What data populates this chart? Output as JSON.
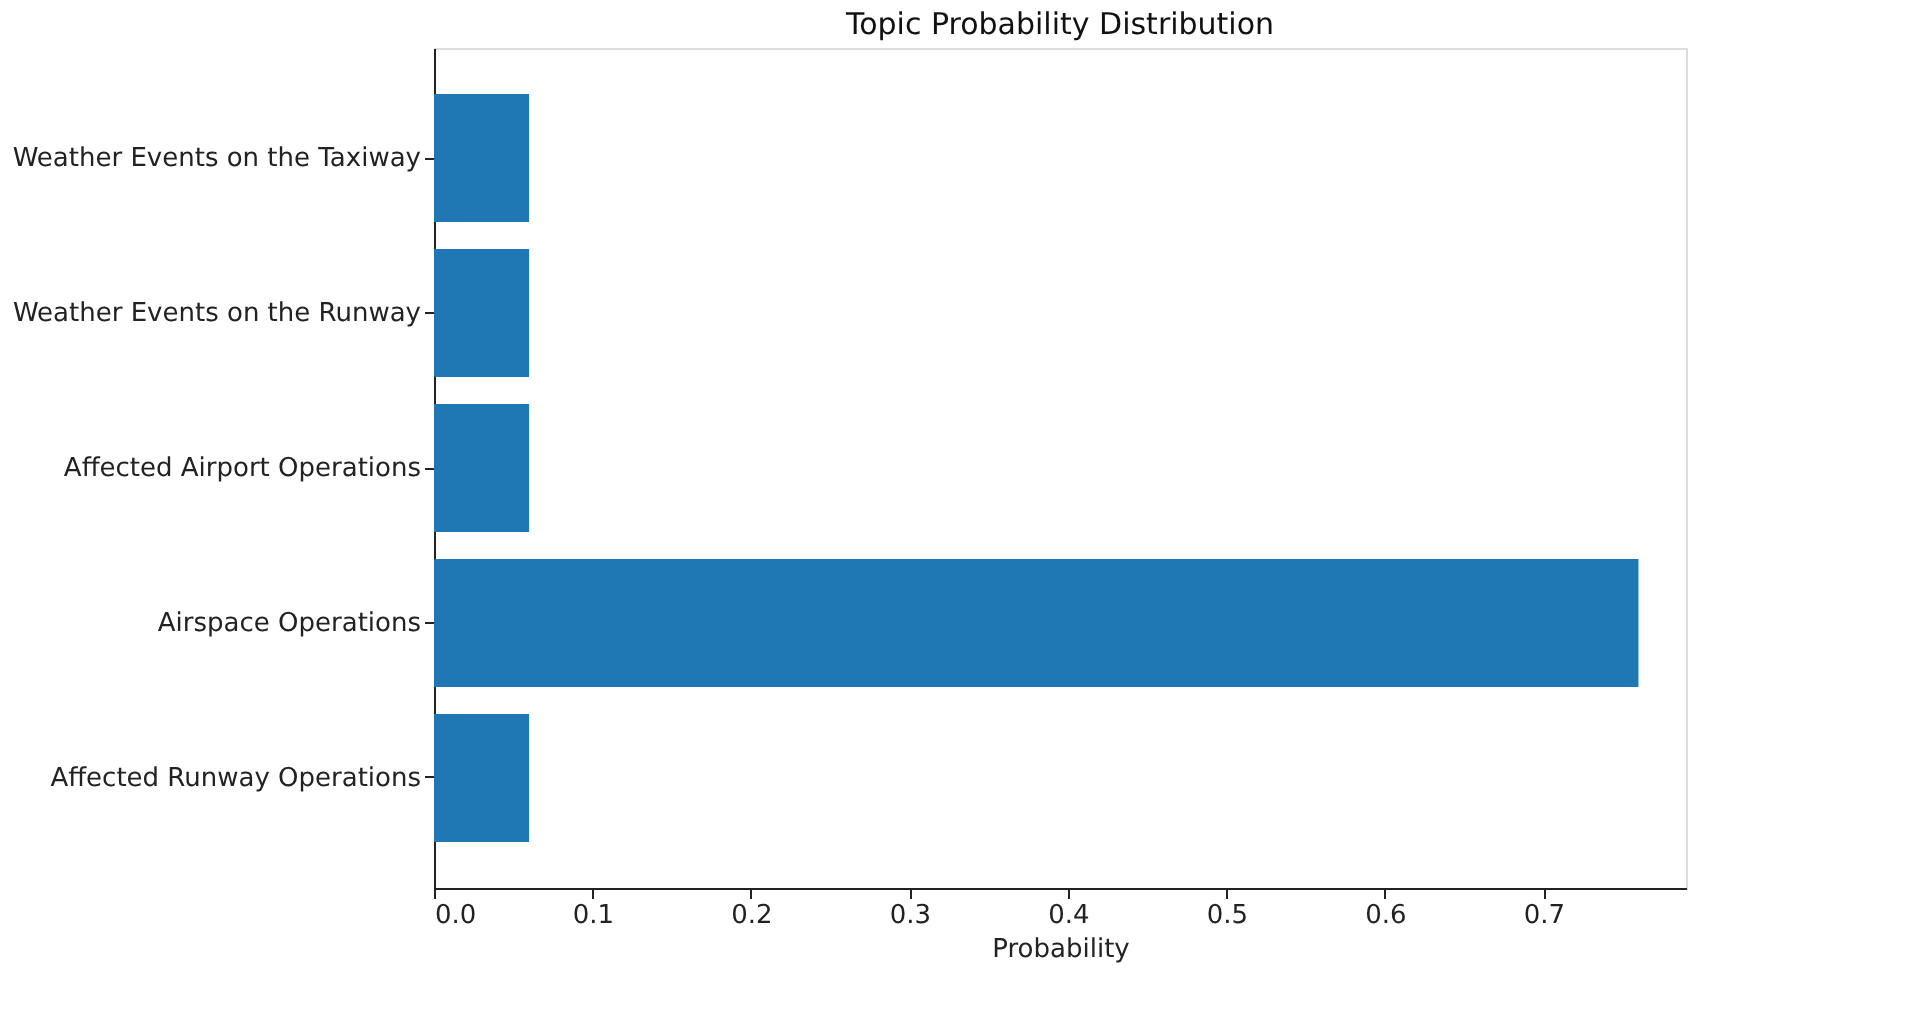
{
  "chart_data": {
    "type": "bar",
    "orientation": "horizontal",
    "title": "Topic Probability Distribution",
    "xlabel": "Probability",
    "categories": [
      "Weather Events on the Taxiway",
      "Weather Events on the Runway",
      "Affected Airport Operations",
      "Airspace Operations",
      "Affected Runway Operations"
    ],
    "values": [
      0.06,
      0.06,
      0.06,
      0.76,
      0.06
    ],
    "color": "#1f77b4",
    "xlim": [
      0,
      0.79
    ],
    "xticks": [
      {
        "value": 0,
        "label": "0.0"
      },
      0.1,
      0.2,
      0.3,
      0.4,
      0.5,
      0.6,
      0.7
    ],
    "grid": false
  }
}
